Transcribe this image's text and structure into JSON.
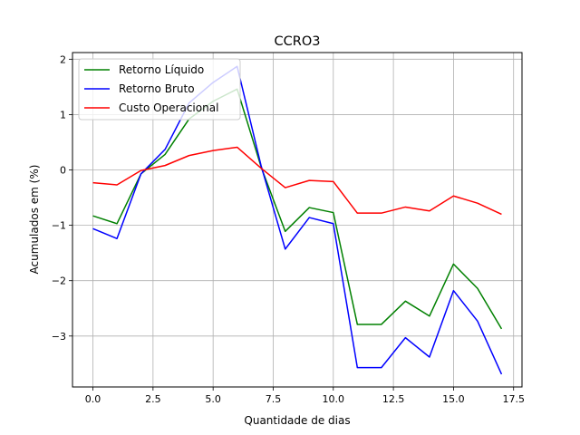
{
  "chart_data": {
    "type": "line",
    "title": "CCRO3",
    "xlabel": "Quantidade de dias",
    "ylabel": "Acumulados em (%)",
    "xlim": [
      -0.85,
      17.85
    ],
    "ylim": [
      -3.92,
      2.12
    ],
    "grid": true,
    "legend_position": "top-left",
    "x": [
      0,
      1,
      2,
      3,
      4,
      5,
      6,
      7,
      8,
      9,
      10,
      11,
      12,
      13,
      14,
      15,
      16,
      17
    ],
    "x_ticks": [
      0,
      2.5,
      5,
      7.5,
      10,
      12.5,
      15,
      17.5
    ],
    "x_tick_labels": [
      "0.0",
      "2.5",
      "5.0",
      "7.5",
      "10.0",
      "12.5",
      "15.0",
      "17.5"
    ],
    "y_ticks": [
      -3,
      -2,
      -1,
      0,
      1,
      2
    ],
    "y_tick_labels": [
      "−3",
      "−2",
      "−1",
      "0",
      "1",
      "2"
    ],
    "series": [
      {
        "name": "Retorno Líquido",
        "color": "#008000",
        "values": [
          -0.83,
          -0.97,
          -0.07,
          0.28,
          0.92,
          1.24,
          1.46,
          0.05,
          -1.11,
          -0.68,
          -0.77,
          -2.79,
          -2.79,
          -2.37,
          -2.64,
          -1.7,
          -2.14,
          -2.87
        ]
      },
      {
        "name": "Retorno Bruto",
        "color": "#0000ff",
        "values": [
          -1.06,
          -1.24,
          -0.07,
          0.37,
          1.21,
          1.58,
          1.87,
          0.07,
          -1.43,
          -0.86,
          -0.97,
          -3.57,
          -3.57,
          -3.03,
          -3.38,
          -2.18,
          -2.73,
          -3.69
        ]
      },
      {
        "name": "Custo Operacional",
        "color": "#ff0000",
        "values": [
          -0.23,
          -0.27,
          -0.01,
          0.08,
          0.26,
          0.35,
          0.41,
          0.03,
          -0.32,
          -0.19,
          -0.21,
          -0.78,
          -0.78,
          -0.67,
          -0.74,
          -0.47,
          -0.6,
          -0.8
        ]
      }
    ]
  }
}
